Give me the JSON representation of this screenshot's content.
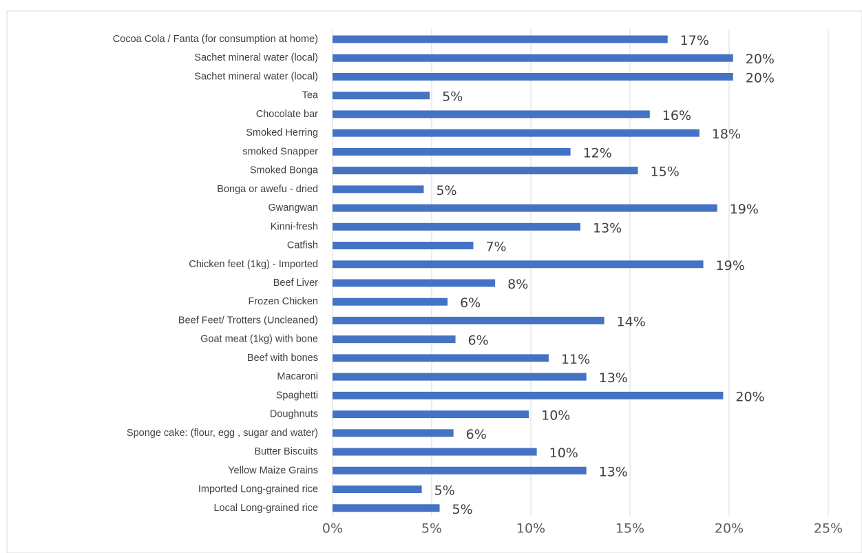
{
  "chart_data": {
    "type": "bar",
    "orientation": "horizontal",
    "title": "",
    "xlabel": "",
    "ylabel": "",
    "xlim": [
      0,
      0.25
    ],
    "x_ticks": [
      0,
      0.05,
      0.1,
      0.15,
      0.2,
      0.25
    ],
    "x_tick_labels": [
      "0%",
      "5%",
      "10%",
      "15%",
      "20%",
      "25%"
    ],
    "grid": "vertical",
    "legend": "none",
    "categories": [
      "Cocoa Cola / Fanta (for consumption at home)",
      "Sachet mineral water (local)",
      "Sachet mineral water (local)",
      "Tea",
      "Chocolate bar",
      "Smoked Herring",
      "smoked Snapper",
      "Smoked Bonga",
      "Bonga or awefu - dried",
      "Gwangwan",
      "Kinni-fresh",
      "Catfish",
      "Chicken feet (1kg) - Imported",
      "Beef Liver",
      "Frozen Chicken",
      "Beef Feet/ Trotters (Uncleaned)",
      "Goat meat (1kg) with bone",
      "Beef with bones",
      "Macaroni",
      "Spaghetti",
      "Doughnuts",
      "Sponge cake: (flour, egg , sugar and water)",
      "Butter Biscuits",
      "Yellow Maize Grains",
      "Imported Long-grained rice",
      "Local Long-grained rice"
    ],
    "values": [
      0.169,
      0.202,
      0.202,
      0.049,
      0.16,
      0.185,
      0.12,
      0.154,
      0.046,
      0.194,
      0.125,
      0.071,
      0.187,
      0.082,
      0.058,
      0.137,
      0.062,
      0.109,
      0.128,
      0.197,
      0.099,
      0.061,
      0.103,
      0.128,
      0.045,
      0.054
    ],
    "data_labels": [
      "17%",
      "20%",
      "20%",
      "5%",
      "16%",
      "18%",
      "12%",
      "15%",
      "5%",
      "19%",
      "13%",
      "7%",
      "19%",
      "8%",
      "6%",
      "14%",
      "6%",
      "11%",
      "13%",
      "20%",
      "10%",
      "6%",
      "10%",
      "13%",
      "5%",
      "5%"
    ]
  },
  "colors": {
    "bar": "#4472c4",
    "gridline": "#d9d9d9",
    "text": "#404040",
    "frame": "#d9d9d9"
  }
}
